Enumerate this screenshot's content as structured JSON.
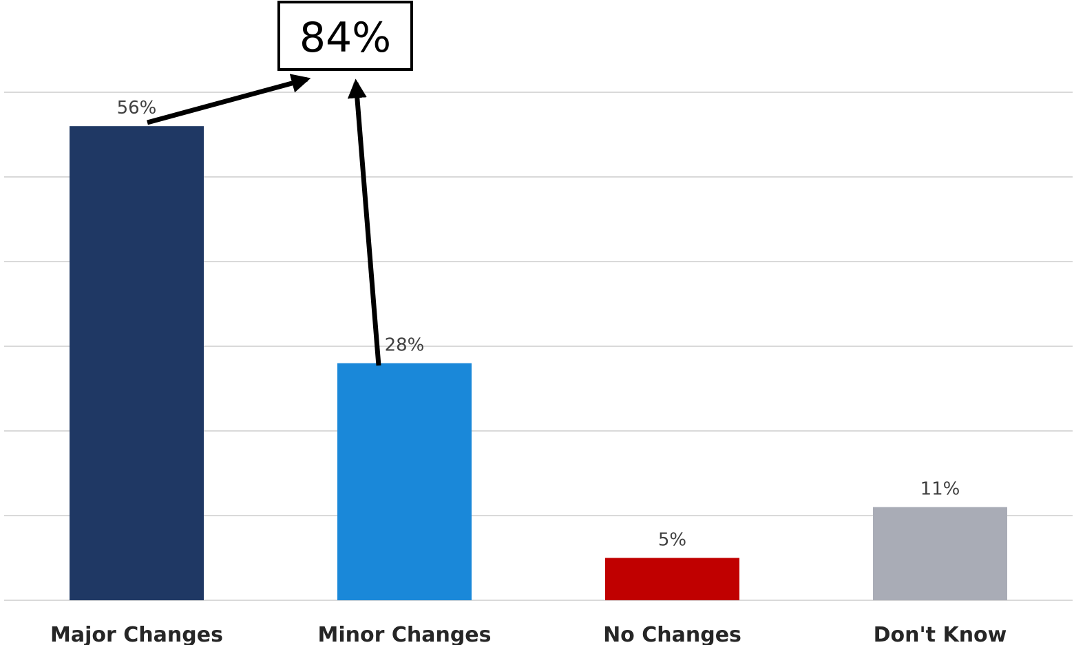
{
  "chart_data": {
    "type": "bar",
    "categories": [
      "Major Changes",
      "Minor Changes",
      "No Changes",
      "Don't Know"
    ],
    "values": [
      56,
      28,
      5,
      11
    ],
    "value_labels": [
      "56%",
      "28%",
      "5%",
      "11%"
    ],
    "colors": [
      "#1f3864",
      "#1a88d9",
      "#c00000",
      "#a9acb6"
    ],
    "ylim": [
      0,
      60
    ],
    "y_gridlines": [
      10,
      20,
      30,
      40,
      50,
      60
    ],
    "grid": true,
    "legend": "none",
    "annotations": [
      {
        "text": "84%",
        "kind": "boxed-callout",
        "sums_categories": [
          "Major Changes",
          "Minor Changes"
        ]
      }
    ]
  }
}
